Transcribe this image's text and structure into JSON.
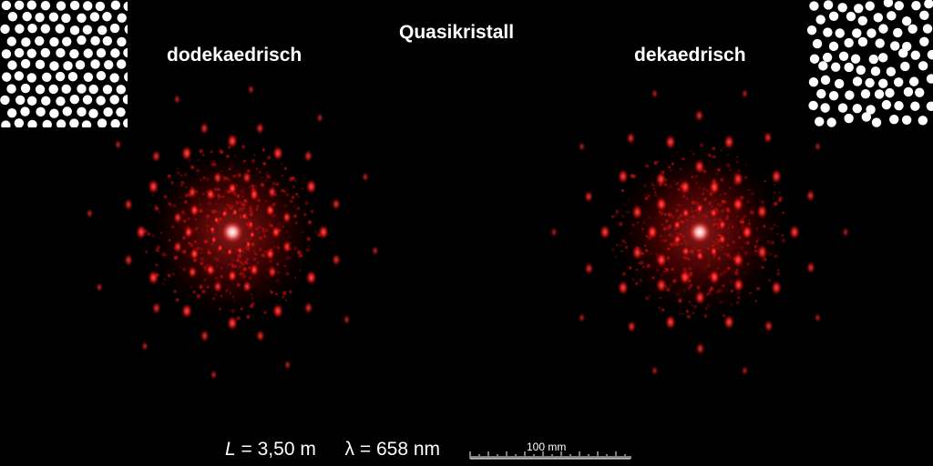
{
  "title": "Quasikristall",
  "left_pattern_label": "dodekaedrisch",
  "right_pattern_label": "dekaedrisch",
  "caption": {
    "L_symbol": "L",
    "L_value": "= 3,50 m",
    "lambda_symbol": "λ",
    "lambda_value": "= 658 nm"
  },
  "scale_bar": {
    "label": "100 mm"
  },
  "colors": {
    "background": "#000000",
    "laser": "#ff1a1a",
    "text": "#ffffff"
  }
}
